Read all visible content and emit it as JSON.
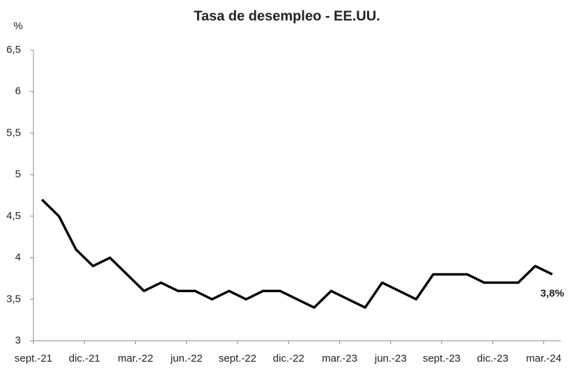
{
  "chart_data": {
    "type": "line",
    "title": "Tasa de desempleo - EE.UU.",
    "y_label": "%",
    "categories": [
      "sept.-21",
      null,
      null,
      "dic.-21",
      null,
      null,
      "mar.-22",
      null,
      null,
      "jun.-22",
      null,
      null,
      "sept.-22",
      null,
      null,
      "dic.-22",
      null,
      null,
      "mar.-23",
      null,
      null,
      "jun.-23",
      null,
      null,
      "sept.-23",
      null,
      null,
      "dic.-23",
      null,
      null,
      "mar.-24"
    ],
    "series": [
      {
        "name": "Tasa de desempleo",
        "color": "#000000",
        "values": [
          4.7,
          4.5,
          4.1,
          3.9,
          4.0,
          3.8,
          3.6,
          3.7,
          3.6,
          3.6,
          3.5,
          3.6,
          3.5,
          3.6,
          3.6,
          3.5,
          3.4,
          3.6,
          3.5,
          3.4,
          3.7,
          3.6,
          3.5,
          3.8,
          3.8,
          3.8,
          3.7,
          3.7,
          3.7,
          3.9,
          3.8
        ],
        "value_labels": [
          null,
          null,
          null,
          null,
          null,
          null,
          null,
          null,
          null,
          null,
          null,
          null,
          null,
          null,
          null,
          null,
          null,
          null,
          null,
          null,
          null,
          null,
          null,
          null,
          null,
          null,
          null,
          null,
          null,
          null,
          "3,8%"
        ]
      }
    ],
    "ylim": [
      3,
      6.5
    ],
    "yticks": [
      3,
      {
        "value": 3.5,
        "label": "3,5"
      },
      4,
      {
        "value": 4.5,
        "label": "4,5"
      },
      5,
      {
        "value": 5.5,
        "label": "5,5"
      },
      6,
      {
        "value": 6.5,
        "label": "6,5"
      }
    ],
    "grid": false
  }
}
